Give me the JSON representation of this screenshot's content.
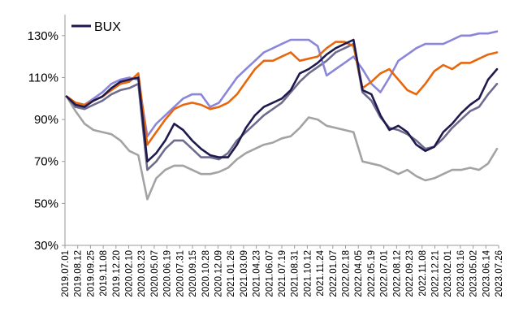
{
  "chart_data": {
    "type": "line",
    "title": "",
    "xlabel": "",
    "ylabel": "",
    "ylim": [
      30,
      140
    ],
    "y_ticks": [
      {
        "value": 30,
        "label": "30%"
      },
      {
        "value": 50,
        "label": "50%"
      },
      {
        "value": 70,
        "label": "70%"
      },
      {
        "value": 90,
        "label": "90%"
      },
      {
        "value": 110,
        "label": "110%"
      },
      {
        "value": 130,
        "label": "130%"
      }
    ],
    "x_ticks": [
      "2019.07.01",
      "2019.08.12",
      "2019.09.25",
      "2019.11.08",
      "2019.12.20",
      "2020.02.10",
      "2020.03.23",
      "2020.05.07",
      "2020.06.19",
      "2020.07.31",
      "2020.09.15",
      "2020.10.28",
      "2020.12.09",
      "2021.01.26",
      "2021.03.09",
      "2021.04.23",
      "2021.06.07",
      "2021.07.19",
      "2021.08.31",
      "2021.10.12",
      "2021.11.24",
      "2022.01.07",
      "2022.02.18",
      "2022.04.05",
      "2022.05.19",
      "2022.07.01",
      "2022.08.12",
      "2022.09.23",
      "2022.11.08",
      "2022.12.21",
      "2023.02.01",
      "2023.03.16",
      "2023.05.02",
      "2023.06.14",
      "2023.07.26"
    ],
    "legend": {
      "placement": "top-left",
      "entries": [
        "BUX"
      ]
    },
    "grid": false,
    "series": [
      {
        "name": "BUX",
        "color": "#1f1a4d",
        "values": [
          101,
          97,
          96,
          99,
          101,
          105,
          108,
          109,
          110,
          70,
          74,
          80,
          88,
          85,
          80,
          76,
          73,
          72,
          72,
          78,
          86,
          92,
          96,
          98,
          100,
          104,
          112,
          114,
          117,
          121,
          124,
          126,
          128,
          104,
          102,
          92,
          85,
          87,
          84,
          78,
          75,
          77,
          84,
          88,
          93,
          97,
          100,
          109,
          114
        ]
      },
      {
        "color": "#e8660c",
        "values": [
          101,
          98,
          97,
          99,
          101,
          104,
          107,
          108,
          112,
          78,
          84,
          90,
          95,
          97,
          98,
          97,
          95,
          96,
          98,
          102,
          108,
          114,
          118,
          118,
          120,
          122,
          118,
          119,
          120,
          124,
          127,
          127,
          125,
          105,
          108,
          112,
          114,
          109,
          104,
          102,
          107,
          113,
          116,
          114,
          117,
          117,
          119,
          121,
          122
        ]
      },
      {
        "color": "#8a86d9",
        "values": [
          101,
          98,
          97,
          100,
          103,
          107,
          109,
          110,
          109,
          82,
          88,
          92,
          96,
          100,
          102,
          102,
          96,
          98,
          104,
          110,
          114,
          118,
          122,
          124,
          126,
          128,
          128,
          128,
          125,
          111,
          114,
          117,
          120,
          114,
          107,
          103,
          110,
          118,
          121,
          124,
          126,
          126,
          126,
          128,
          130,
          130,
          131,
          131,
          132
        ]
      },
      {
        "color": "#6e6b8c",
        "values": [
          101,
          96,
          95,
          97,
          99,
          102,
          104,
          105,
          107,
          66,
          70,
          76,
          80,
          80,
          76,
          72,
          72,
          71,
          74,
          80,
          84,
          88,
          92,
          95,
          98,
          103,
          108,
          112,
          115,
          118,
          122,
          124,
          126,
          103,
          99,
          91,
          86,
          85,
          83,
          80,
          76,
          77,
          81,
          86,
          90,
          94,
          96,
          102,
          107
        ]
      },
      {
        "color": "#a3a3a3",
        "values": [
          101,
          94,
          88,
          85,
          84,
          83,
          80,
          75,
          73,
          52,
          62,
          66,
          68,
          68,
          66,
          64,
          64,
          65,
          67,
          71,
          74,
          76,
          78,
          79,
          81,
          82,
          86,
          91,
          90,
          87,
          86,
          85,
          84,
          70,
          69,
          68,
          66,
          64,
          66,
          63,
          61,
          62,
          64,
          66,
          66,
          67,
          66,
          69,
          76
        ]
      }
    ]
  }
}
